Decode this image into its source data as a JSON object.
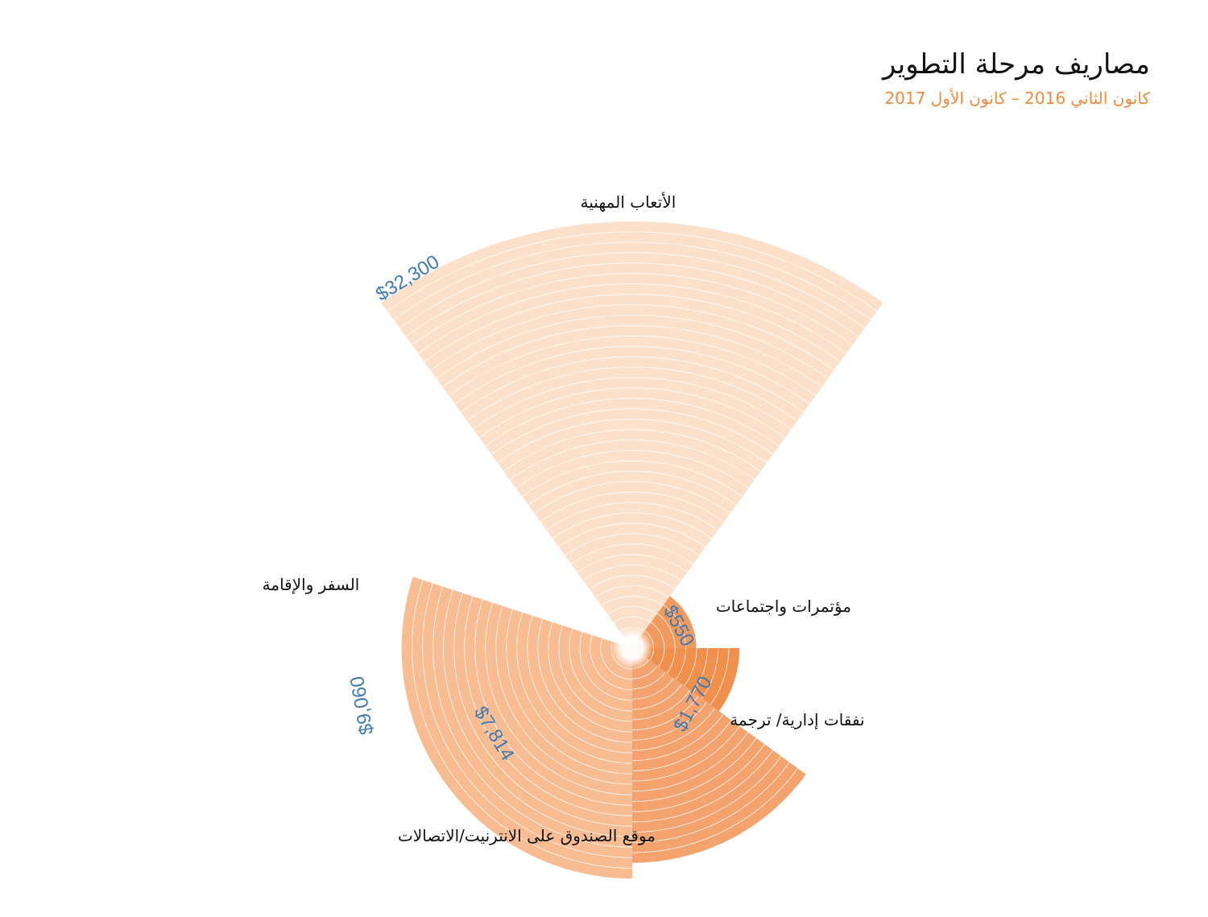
{
  "header": {
    "title": "مصاريف مرحلة التطوير",
    "subtitle": "كانون الثاني 2016 – كانون الأول 2017"
  },
  "colors": {
    "subtitle": "#f08a3e",
    "value_label": "#3f7bb0",
    "ring_line": "#ffffff"
  },
  "chart_data": {
    "type": "radial_bar",
    "categories": [
      "الأتعاب المهنية",
      "مؤتمرات واجتماعات",
      "نفقات إدارية/ ترجمة",
      "موقع الصندوق على الانترنيت/الاتصالات",
      "السفر والإقامة"
    ],
    "values": [
      32300,
      550,
      1770,
      7814,
      9060
    ],
    "value_labels": [
      "$32,300",
      "$550",
      "$1,770",
      "$7,814",
      "$9,060"
    ],
    "fill_colors": [
      "#fde0ca",
      "#f29a5e",
      "#f18f4c",
      "#f4a36e",
      "#f7bc91"
    ],
    "value_unit": "USD"
  }
}
